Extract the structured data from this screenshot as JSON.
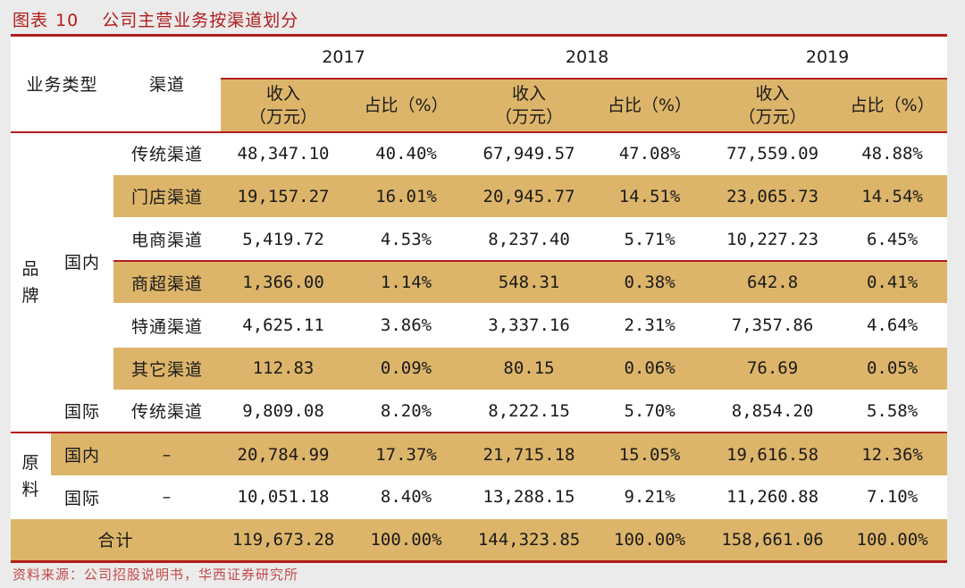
{
  "caption": {
    "figure_label": "图表",
    "figure_number": "10",
    "title": "公司主营业务按渠道划分"
  },
  "header": {
    "business_type": "业务类型",
    "channel": "渠道",
    "years": [
      "2017",
      "2018",
      "2019"
    ],
    "revenue": "收入",
    "revenue_unit": "（万元）",
    "share": "占比（%）"
  },
  "groups": {
    "brand": "品牌",
    "raw": "原料",
    "domestic": "国内",
    "international": "国际"
  },
  "rows": [
    {
      "channel": "传统渠道",
      "v2017": "48,347.10",
      "p2017": "40.40%",
      "v2018": "67,949.57",
      "p2018": "47.08%",
      "v2019": "77,559.09",
      "p2019": "48.88%"
    },
    {
      "channel": "门店渠道",
      "v2017": "19,157.27",
      "p2017": "16.01%",
      "v2018": "20,945.77",
      "p2018": "14.51%",
      "v2019": "23,065.73",
      "p2019": "14.54%"
    },
    {
      "channel": "电商渠道",
      "v2017": "5,419.72",
      "p2017": "4.53%",
      "v2018": "8,237.40",
      "p2018": "5.71%",
      "v2019": "10,227.23",
      "p2019": "6.45%"
    },
    {
      "channel": "商超渠道",
      "v2017": "1,366.00",
      "p2017": "1.14%",
      "v2018": "548.31",
      "p2018": "0.38%",
      "v2019": "642.8",
      "p2019": "0.41%"
    },
    {
      "channel": "特通渠道",
      "v2017": "4,625.11",
      "p2017": "3.86%",
      "v2018": "3,337.16",
      "p2018": "2.31%",
      "v2019": "7,357.86",
      "p2019": "4.64%"
    },
    {
      "channel": "其它渠道",
      "v2017": "112.83",
      "p2017": "0.09%",
      "v2018": "80.15",
      "p2018": "0.06%",
      "v2019": "76.69",
      "p2019": "0.05%"
    },
    {
      "channel": "传统渠道",
      "v2017": "9,809.08",
      "p2017": "8.20%",
      "v2018": "8,222.15",
      "p2018": "5.70%",
      "v2019": "8,854.20",
      "p2019": "5.58%"
    },
    {
      "channel": "–",
      "v2017": "20,784.99",
      "p2017": "17.37%",
      "v2018": "21,715.18",
      "p2018": "15.05%",
      "v2019": "19,616.58",
      "p2019": "12.36%"
    },
    {
      "channel": "–",
      "v2017": "10,051.18",
      "p2017": "8.40%",
      "v2018": "13,288.15",
      "p2018": "9.21%",
      "v2019": "11,260.88",
      "p2019": "7.10%"
    }
  ],
  "total": {
    "label": "合计",
    "v2017": "119,673.28",
    "p2017": "100.00%",
    "v2018": "144,323.85",
    "p2018": "100.00%",
    "v2019": "158,661.06",
    "p2019": "100.00%"
  },
  "source": "资料来源：公司招股说明书，华西证券研究所",
  "colors": {
    "accent": "#b01e1e",
    "band": "#ddb56a",
    "background": "#ebebeb"
  }
}
